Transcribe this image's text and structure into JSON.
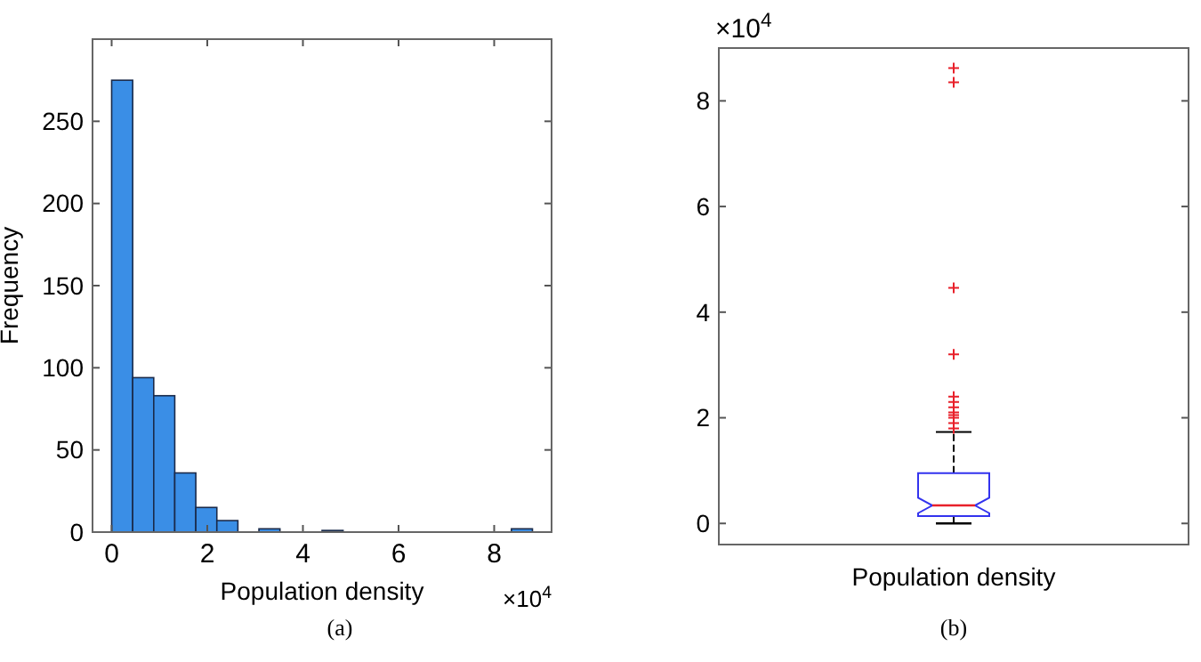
{
  "chart_data": [
    {
      "type": "histogram",
      "xlabel": "Population density",
      "ylabel": "Frequency",
      "color": "#3a8ee6",
      "bins": [
        0,
        0.44,
        0.88,
        1.32,
        1.76,
        2.2,
        2.64,
        3.08,
        3.52,
        3.96,
        4.4,
        4.84,
        5.28,
        5.72,
        6.16,
        6.6,
        7.04,
        7.48,
        7.92,
        8.36,
        8.8
      ],
      "values": [
        275,
        94,
        83,
        36,
        15,
        7,
        0,
        2,
        0,
        0,
        1,
        0,
        0,
        0,
        0,
        0,
        0,
        0,
        0,
        2
      ],
      "xlim": [
        -0.4,
        9.2
      ],
      "xticks": [
        0,
        2,
        4,
        6,
        8
      ],
      "ylim": [
        0,
        300
      ],
      "yticks": [
        0,
        50,
        100,
        150,
        200,
        250
      ],
      "annotations": [
        "×10$^{4}$",
        "(a)"
      ]
    },
    {
      "type": "box",
      "categories": [
        "Population density"
      ],
      "color": "#3333ee",
      "boxes": [
        {
          "low": 0,
          "q1": 0.14,
          "median": 0.34,
          "q3": 0.95,
          "high": 1.73,
          "outliers": [
            1.8,
            1.9,
            2.0,
            2.05,
            2.1,
            2.2,
            2.3,
            2.4,
            3.2,
            4.46,
            8.35,
            8.62
          ]
        }
      ],
      "ylim": [
        -0.4,
        9.0
      ],
      "yticks": [
        0,
        2,
        4,
        6,
        8
      ],
      "annotations": [
        "×10$^{4}$",
        "(b)"
      ]
    }
  ]
}
